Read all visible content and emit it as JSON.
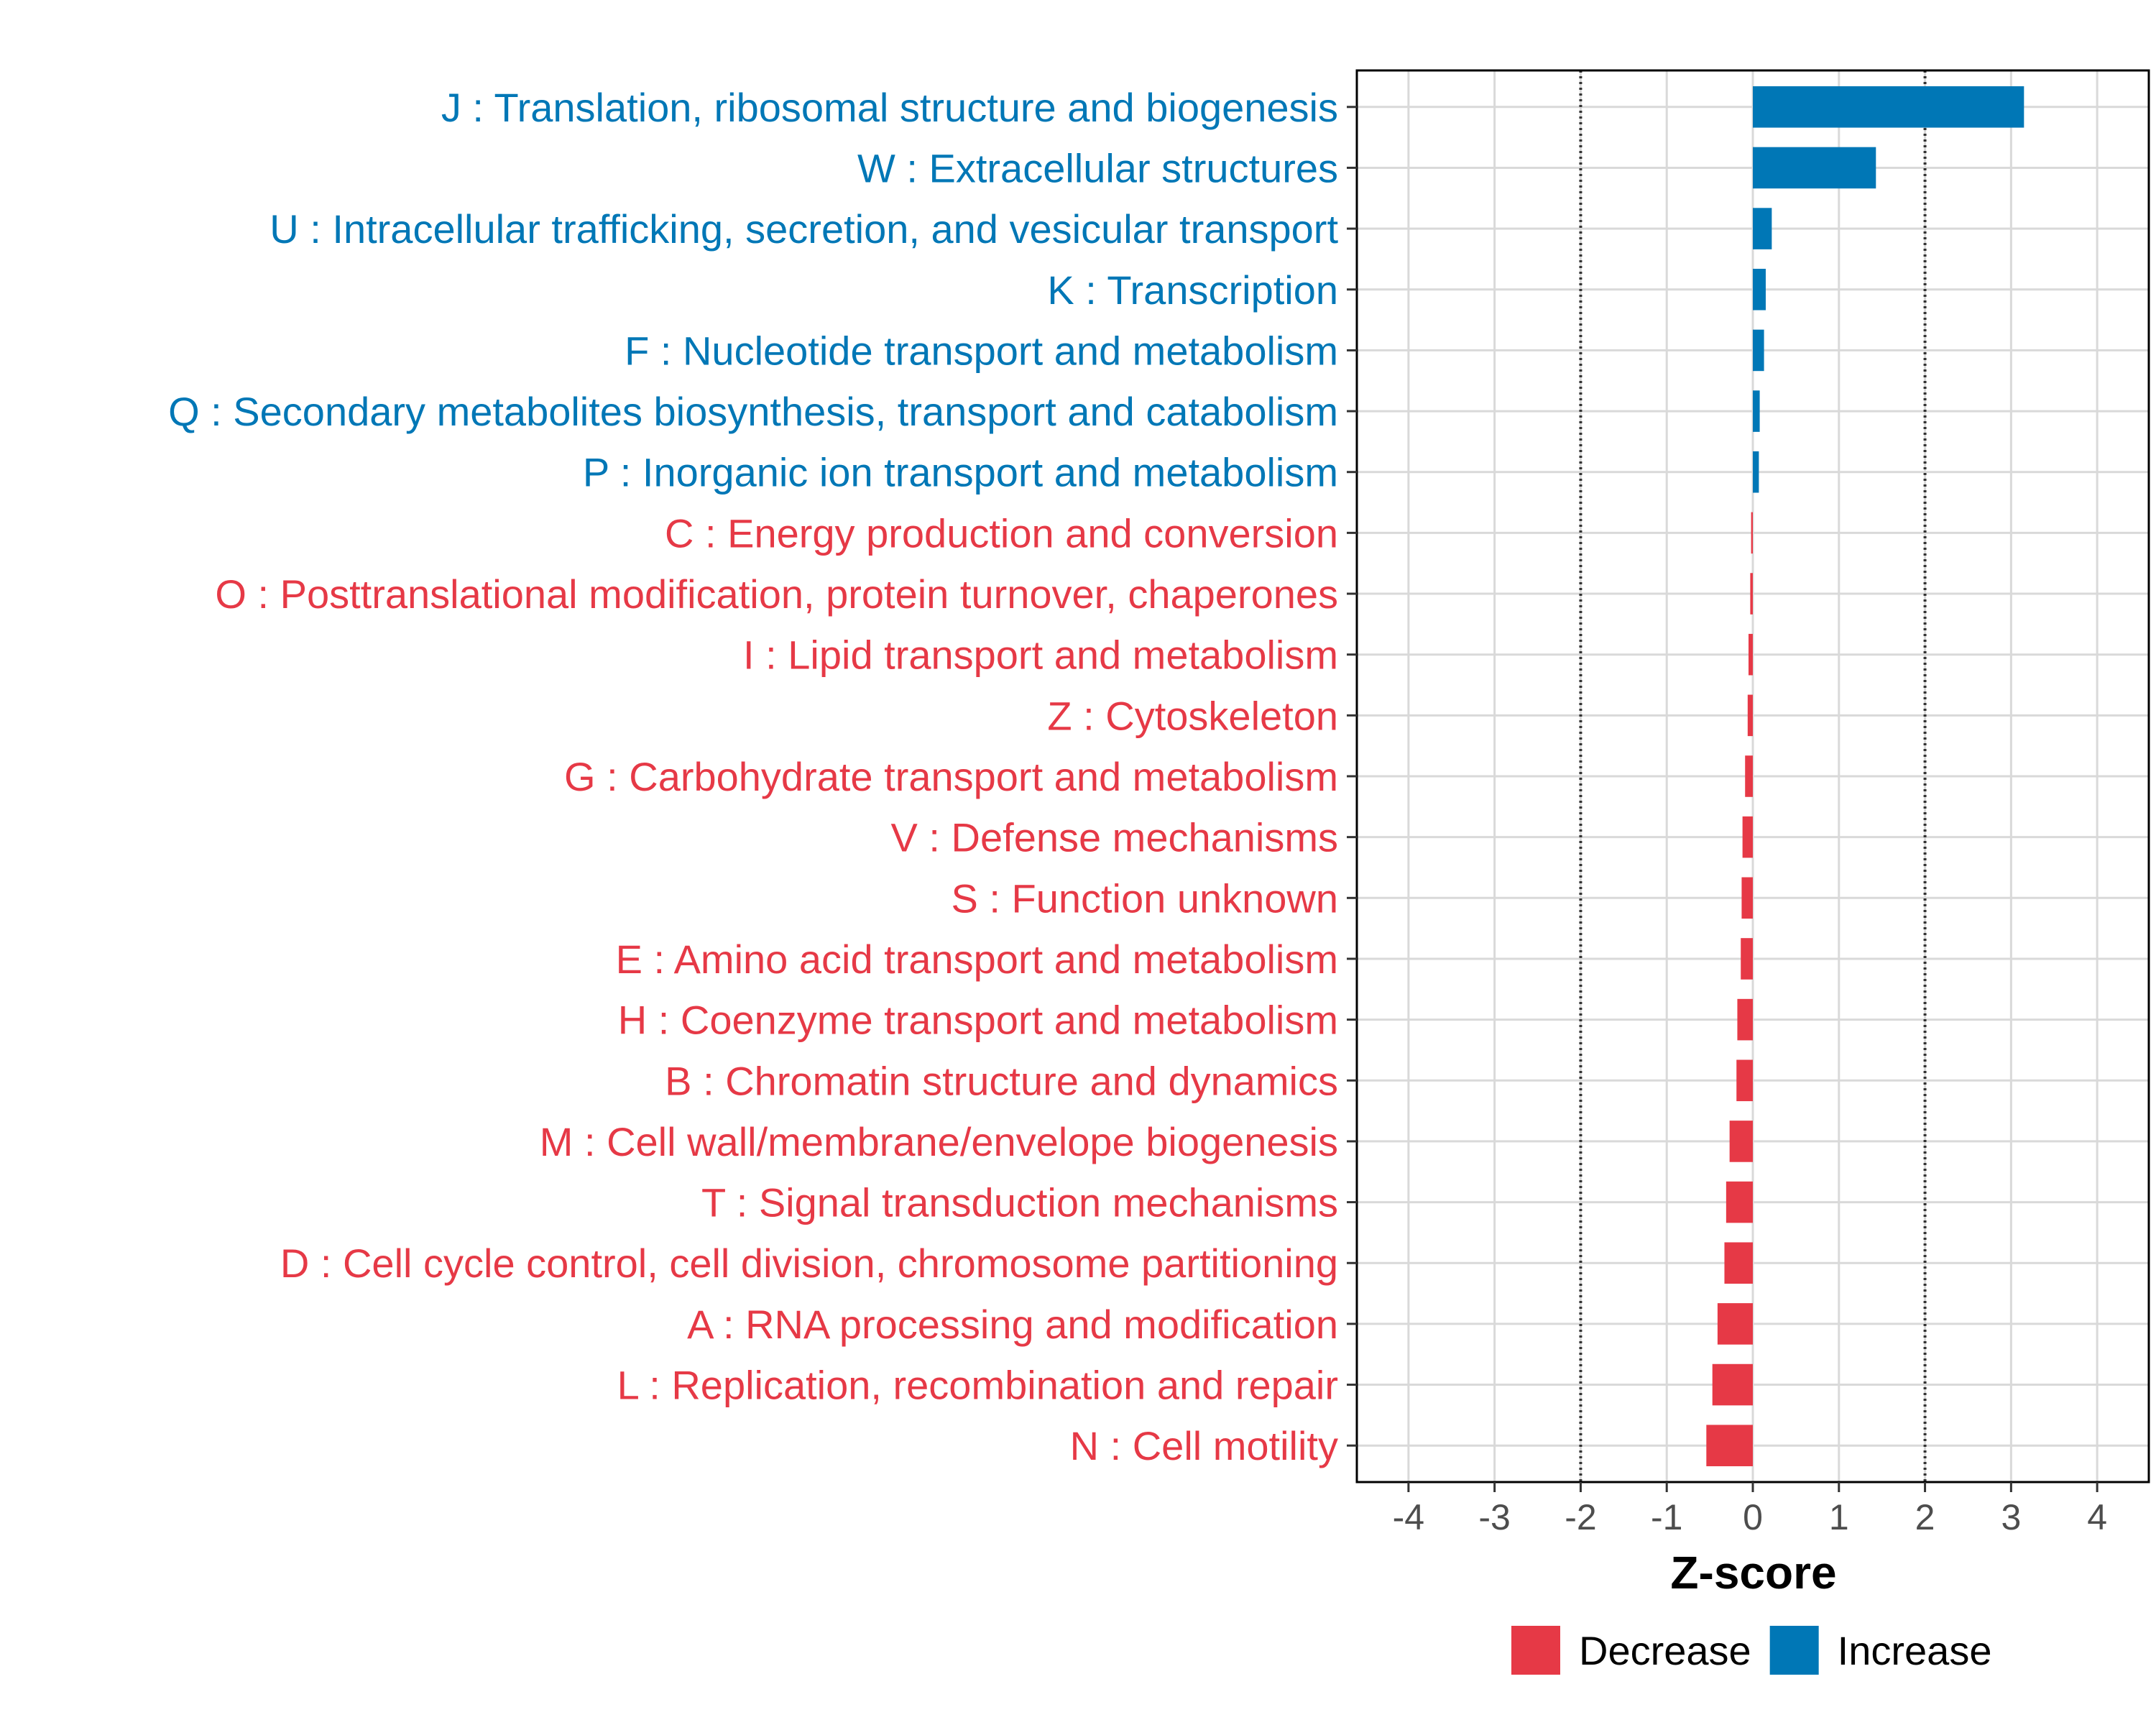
{
  "chart_data": {
    "type": "bar",
    "orientation": "horizontal",
    "xlabel": "Z-score",
    "ylabel": "",
    "xlim": [
      -4.6,
      4.6
    ],
    "xticks": [
      -4,
      -3,
      -2,
      -1,
      0,
      1,
      2,
      3,
      4
    ],
    "reference_lines": [
      -2,
      2
    ],
    "grid": true,
    "legend_position": "bottom",
    "legend": [
      {
        "name": "Decrease",
        "color": "#e63946"
      },
      {
        "name": "Increase",
        "color": "#0077b6"
      }
    ],
    "categories": [
      "J : Translation, ribosomal structure and biogenesis",
      "W : Extracellular structures",
      "U : Intracellular trafficking, secretion, and vesicular transport",
      "K : Transcription",
      "F : Nucleotide transport and metabolism",
      "Q : Secondary metabolites biosynthesis, transport and catabolism",
      "P : Inorganic ion transport and metabolism",
      "C : Energy production and conversion",
      "O : Posttranslational modification, protein turnover, chaperones",
      "I : Lipid transport and metabolism",
      "Z : Cytoskeleton",
      "G : Carbohydrate transport and metabolism",
      "V : Defense mechanisms",
      "S : Function unknown",
      "E : Amino acid transport and metabolism",
      "H : Coenzyme transport and metabolism",
      "B : Chromatin structure and dynamics",
      "M : Cell wall/membrane/envelope biogenesis",
      "T : Signal transduction mechanisms",
      "D : Cell cycle control, cell division, chromosome partitioning",
      "A : RNA processing and modification",
      "L : Replication, recombination and repair",
      "N : Cell motility"
    ],
    "values": [
      3.15,
      1.43,
      0.22,
      0.15,
      0.13,
      0.08,
      0.07,
      -0.02,
      -0.03,
      -0.05,
      -0.06,
      -0.09,
      -0.12,
      -0.13,
      -0.14,
      -0.18,
      -0.19,
      -0.27,
      -0.31,
      -0.33,
      -0.41,
      -0.47,
      -0.54
    ]
  }
}
